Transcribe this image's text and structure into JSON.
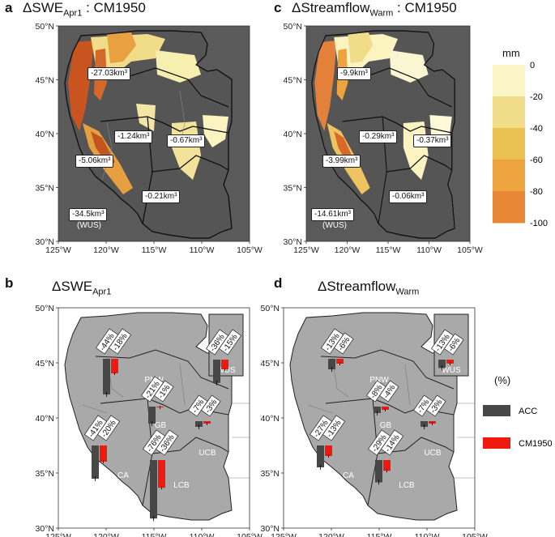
{
  "panels": {
    "a": {
      "letter": "a",
      "delta": "ΔSWE",
      "sub": "Apr1",
      "suffix": " : CM1950"
    },
    "b": {
      "letter": "b",
      "delta": "ΔSWE",
      "sub": "Apr1"
    },
    "c": {
      "letter": "c",
      "delta": "ΔStreamflow",
      "sub": "Warm",
      "suffix": " : CM1950"
    },
    "d": {
      "letter": "d",
      "delta": "ΔStreamflow",
      "sub": "Warm"
    }
  },
  "axes": {
    "lat_ticks": [
      "50°N",
      "45°N",
      "40°N",
      "35°N",
      "30°N"
    ],
    "lon_ticks": [
      "125°W",
      "120°W",
      "115°W",
      "110°W",
      "105°W"
    ]
  },
  "map_a_labels": {
    "pnw": "-27.03km³",
    "gb": "-1.24km³",
    "ucb": "-0.67km³",
    "ca": "-5.06km³",
    "lcb": "-0.21km³",
    "wus": "-34.5km³",
    "wus_tag": "(WUS)"
  },
  "map_c_labels": {
    "pnw": "-9.9km³",
    "gb": "-0.29km³",
    "ucb": "-0.37km³",
    "ca": "-3.99km³",
    "lcb": "-0.06km³",
    "wus": "-14.61km³",
    "wus_tag": "(WUS)"
  },
  "colorbar": {
    "unit": "mm",
    "ticks": [
      "0",
      "-20",
      "-40",
      "-60",
      "-80",
      "-100"
    ],
    "colors": [
      "#fbf6c8",
      "#f1dc8a",
      "#eac152",
      "#eda43f",
      "#e88836"
    ]
  },
  "region_names": {
    "pnw": "PNW",
    "gb": "GB",
    "ucb": "UCB",
    "ca": "CA",
    "lcb": "LCB",
    "wus": "WUS"
  },
  "legend": {
    "title": "(%)",
    "items": [
      {
        "label": "ACC",
        "color": "#474747"
      },
      {
        "label": "CM1950",
        "color": "#f0190f"
      }
    ]
  },
  "chart_data": [
    {
      "type": "bar",
      "title": "ΔSWE Apr1",
      "categories": [
        "PNW",
        "GB",
        "UCB",
        "CA",
        "LCB",
        "WUS"
      ],
      "series": [
        {
          "name": "ACC",
          "values": [
            -44,
            -21,
            -7,
            -41,
            -76,
            -36
          ]
        },
        {
          "name": "CM1950",
          "values": [
            -18,
            -1,
            -3,
            -20,
            -36,
            -15
          ]
        }
      ],
      "labels_acc": [
        "-44%",
        "-21%",
        "-7%",
        "-41%",
        "-76%",
        "-36%"
      ],
      "labels_cm": [
        "-18%",
        "-1%",
        "-3%",
        "-20%",
        "-36%",
        "-15%"
      ]
    },
    {
      "type": "bar",
      "title": "ΔStreamflow Warm",
      "categories": [
        "PNW",
        "GB",
        "UCB",
        "CA",
        "LCB",
        "WUS"
      ],
      "series": [
        {
          "name": "ACC",
          "values": [
            -13,
            -8,
            -7,
            -27,
            -29,
            -13
          ]
        },
        {
          "name": "CM1950",
          "values": [
            -6,
            -4,
            -3,
            -13,
            -14,
            -6
          ]
        }
      ],
      "labels_acc": [
        "-13%",
        "-8%",
        "-7%",
        "-27%",
        "-29%",
        "-13%"
      ],
      "labels_cm": [
        "-6%",
        "-4%",
        "-3%",
        "-13%",
        "-14%",
        "-6%"
      ]
    }
  ]
}
